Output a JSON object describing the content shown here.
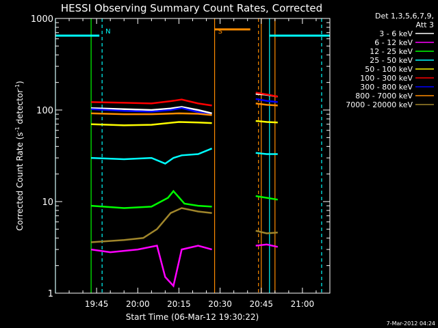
{
  "chart_data": {
    "type": "line",
    "title": "HESSI Observing Summary Count Rates, Corrected",
    "xlabel": "Start Time (06-Mar-12 19:30:22)",
    "ylabel_main": "Corrected Count Rate (s",
    "ylabel_sup1": "-1",
    "ylabel_mid": " detector",
    "ylabel_sup2": "-1",
    "ylabel_end": ")",
    "y_scale": "log",
    "xlim": [
      "19:30",
      "21:10"
    ],
    "ylim": [
      1,
      1000
    ],
    "x_ticks": [
      "19:45",
      "20:00",
      "20:15",
      "20:30",
      "20:45",
      "21:00"
    ],
    "y_ticks": [
      "1",
      "10",
      "100",
      "1000"
    ],
    "legend": {
      "header1": "Det 1,3,5,6,7,9,",
      "header2": "Att 3",
      "placement": "top-right"
    },
    "series": [
      {
        "name": "3 - 6 keV",
        "color": "#ffffff",
        "segments": [
          {
            "x": [
              "19:43",
              "19:55",
              "20:05",
              "20:12",
              "20:16",
              "20:22",
              "20:27"
            ],
            "values": [
              105,
              102,
              100,
              104,
              108,
              100,
              92
            ]
          },
          {
            "x": [
              "20:43",
              "20:46",
              "20:48",
              "20:51"
            ],
            "values": [
              150,
              148,
              145,
              140
            ]
          }
        ]
      },
      {
        "name": "6 - 12 keV",
        "color": "#ff00ff",
        "segments": [
          {
            "x": [
              "19:43",
              "19:50",
              "20:00",
              "20:07",
              "20:10",
              "20:13",
              "20:16",
              "20:22",
              "20:27"
            ],
            "values": [
              3.0,
              2.8,
              3.0,
              3.3,
              1.5,
              1.2,
              3.0,
              3.3,
              3.0
            ]
          },
          {
            "x": [
              "20:43",
              "20:47",
              "20:51"
            ],
            "values": [
              3.3,
              3.4,
              3.2
            ]
          }
        ]
      },
      {
        "name": "12 - 25 keV",
        "color": "#00ff00",
        "segments": [
          {
            "x": [
              "19:43",
              "19:55",
              "20:05",
              "20:11",
              "20:13",
              "20:17",
              "20:22",
              "20:27"
            ],
            "values": [
              9.0,
              8.5,
              8.8,
              11.0,
              13.0,
              9.5,
              9.0,
              8.8
            ]
          },
          {
            "x": [
              "20:43",
              "20:47",
              "20:51"
            ],
            "values": [
              11.5,
              11.0,
              10.5
            ]
          }
        ]
      },
      {
        "name": "25 - 50 keV",
        "color": "#00ffff",
        "segments": [
          {
            "x": [
              "19:43",
              "19:55",
              "20:05",
              "20:10",
              "20:13",
              "20:16",
              "20:22",
              "20:27"
            ],
            "values": [
              30,
              29,
              30,
              26,
              30,
              32,
              33,
              38
            ]
          },
          {
            "x": [
              "20:43",
              "20:47",
              "20:51"
            ],
            "values": [
              34,
              33,
              33
            ]
          }
        ]
      },
      {
        "name": "50 - 100 keV",
        "color": "#ffff00",
        "segments": [
          {
            "x": [
              "19:43",
              "19:55",
              "20:05",
              "20:15",
              "20:22",
              "20:27"
            ],
            "values": [
              70,
              68,
              69,
              74,
              73,
              72
            ]
          },
          {
            "x": [
              "20:43",
              "20:47",
              "20:51"
            ],
            "values": [
              76,
              74,
              73
            ]
          }
        ]
      },
      {
        "name": "100 - 300 keV",
        "color": "#ff0000",
        "segments": [
          {
            "x": [
              "19:43",
              "19:55",
              "20:05",
              "20:12",
              "20:16",
              "20:22",
              "20:27"
            ],
            "values": [
              122,
              120,
              118,
              125,
              130,
              118,
              112
            ]
          },
          {
            "x": [
              "20:43",
              "20:47",
              "20:51"
            ],
            "values": [
              155,
              148,
              140
            ]
          }
        ]
      },
      {
        "name": "300 - 800 keV",
        "color": "#0000ff",
        "segments": [
          {
            "x": [
              "19:43",
              "19:55",
              "20:05",
              "20:12",
              "20:16",
              "20:22",
              "20:27"
            ],
            "values": [
              102,
              98,
              96,
              100,
              105,
              95,
              88
            ]
          },
          {
            "x": [
              "20:43",
              "20:47",
              "20:51"
            ],
            "values": [
              132,
              126,
              122
            ]
          }
        ]
      },
      {
        "name": "800 - 7000 keV",
        "color": "#ff8c00",
        "segments": [
          {
            "x": [
              "19:43",
              "19:55",
              "20:05",
              "20:15",
              "20:22",
              "20:27"
            ],
            "values": [
              92,
              90,
              90,
              92,
              91,
              88
            ]
          },
          {
            "x": [
              "20:43",
              "20:47",
              "20:51"
            ],
            "values": [
              118,
              114,
              112
            ]
          }
        ]
      },
      {
        "name": "7000 - 20000 keV",
        "color": "#a0862b",
        "segments": [
          {
            "x": [
              "19:43",
              "19:55",
              "20:02",
              "20:07",
              "20:12",
              "20:16",
              "20:22",
              "20:27"
            ],
            "values": [
              3.6,
              3.8,
              4.0,
              5.0,
              7.5,
              8.5,
              7.8,
              7.5
            ]
          },
          {
            "x": [
              "20:43",
              "20:47",
              "20:51"
            ],
            "values": [
              4.8,
              4.5,
              4.6
            ]
          }
        ]
      }
    ],
    "attenuator_state": {
      "color": "#00ffff",
      "segments": [
        {
          "x": [
            "19:30",
            "19:46"
          ],
          "values": [
            650,
            650
          ]
        },
        {
          "x": [
            "20:48",
            "21:10"
          ],
          "values": [
            650,
            650
          ]
        }
      ]
    },
    "saa_state": {
      "color": "#ff8c00",
      "segments": [
        {
          "x": [
            "20:28",
            "20:41"
          ],
          "values": [
            760,
            760
          ]
        }
      ]
    },
    "markers": [
      {
        "label": "N",
        "x": "19:47",
        "color": "#00ffff",
        "dashed": true
      },
      {
        "label": "S",
        "x": "20:28",
        "color": "#ff8c00",
        "dashed": false
      },
      {
        "x": "20:44",
        "color": "#ff8c00",
        "dashed": true
      },
      {
        "x": "20:48",
        "color": "#00ffff",
        "dashed": false
      },
      {
        "x": "20:50",
        "color": "#ff8c00",
        "dashed": false
      },
      {
        "x": "21:07",
        "color": "#00ffff",
        "dashed": true
      },
      {
        "x": "19:30",
        "color": "#00ffff",
        "dashed": false
      },
      {
        "x": "20:45",
        "color": "#ff8c00",
        "dashed": false
      },
      {
        "x": "19:43",
        "color": "#00ff00",
        "dashed": false
      }
    ],
    "footer_timestamp": "7-Mar-2012 04:24"
  }
}
